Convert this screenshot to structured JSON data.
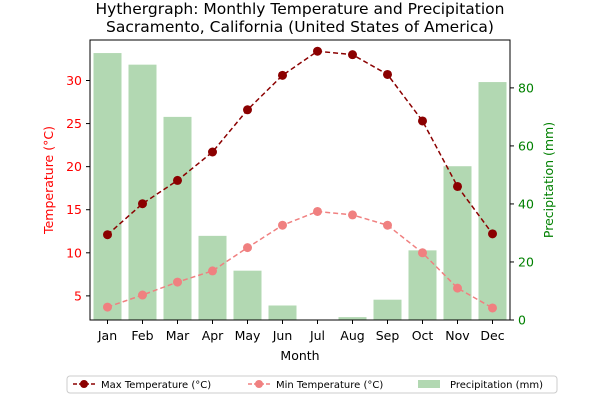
{
  "chart_data": {
    "type": "line",
    "title_line1": "Hythergraph: Monthly Temperature and Precipitation",
    "title_line2": "Sacramento, California (United States of America)",
    "xlabel": "Month",
    "ylabel_left": "Temperature (°C)",
    "ylabel_right": "Precipitation (mm)",
    "categories": [
      "Jan",
      "Feb",
      "Mar",
      "Apr",
      "May",
      "Jun",
      "Jul",
      "Aug",
      "Sep",
      "Oct",
      "Nov",
      "Dec"
    ],
    "y_left_lim": [
      2.2,
      34.7
    ],
    "y_left_ticks": [
      5,
      10,
      15,
      20,
      25,
      30
    ],
    "y_right_lim": [
      0,
      96.5
    ],
    "y_right_ticks": [
      0,
      20,
      40,
      60,
      80
    ],
    "series": [
      {
        "name": "Max Temperature (°C)",
        "type": "line",
        "axis": "left",
        "style": "dashed",
        "marker": "circle",
        "color": "#8b0000",
        "values": [
          12.1,
          15.7,
          18.4,
          21.7,
          26.6,
          30.6,
          33.4,
          33.0,
          30.7,
          25.3,
          17.7,
          12.2
        ]
      },
      {
        "name": "Min Temperature (°C)",
        "type": "line",
        "axis": "left",
        "style": "dashed",
        "marker": "circle",
        "color": "#f08080",
        "values": [
          3.7,
          5.1,
          6.6,
          7.9,
          10.6,
          13.2,
          14.8,
          14.4,
          13.2,
          10.0,
          5.9,
          3.6
        ]
      },
      {
        "name": "Precipitation (mm)",
        "type": "bar",
        "axis": "right",
        "color": "#b2d8b2",
        "values": [
          92,
          88,
          70,
          29,
          17,
          5,
          0,
          1,
          7,
          24,
          53,
          82
        ]
      }
    ],
    "colors": {
      "left_axis": "#ff0000",
      "right_axis": "#008000",
      "frame": "#000000"
    },
    "legend_position": "bottom-center"
  }
}
